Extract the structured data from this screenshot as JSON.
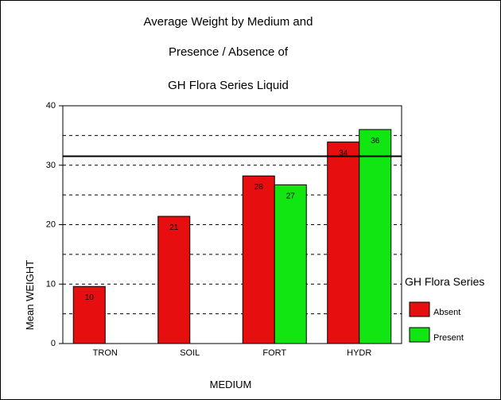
{
  "chart_data": {
    "type": "bar",
    "title_lines": [
      "Average Weight by Medium and",
      "Presence / Absence of",
      "GH Flora Series Liquid"
    ],
    "xlabel": "MEDIUM",
    "ylabel": "Mean WEIGHT",
    "categories": [
      "TRON",
      "SOIL",
      "FORT",
      "HYDR"
    ],
    "ylim": [
      0,
      40
    ],
    "yticks": [
      0,
      10,
      20,
      30,
      40
    ],
    "grid": "dashed horizontal every 5",
    "reference_line": 31.5,
    "legend": {
      "title": "GH Flora Series",
      "placement": "right"
    },
    "series": [
      {
        "name": "Absent",
        "color": "#e60e0e",
        "values": [
          9.6,
          21.4,
          28.2,
          33.9
        ],
        "labels": [
          "10",
          "21",
          "28",
          "34"
        ]
      },
      {
        "name": "Present",
        "color": "#12e612",
        "values": [
          null,
          null,
          26.7,
          36
        ],
        "labels": [
          null,
          null,
          "27",
          "36"
        ]
      }
    ]
  }
}
